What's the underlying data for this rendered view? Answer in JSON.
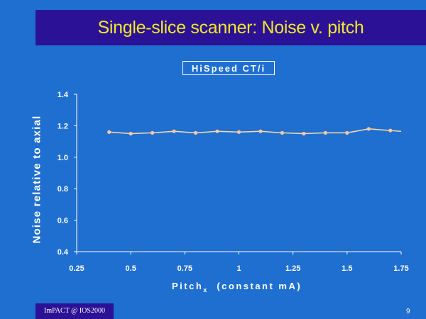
{
  "slide": {
    "title": "Single-slice scanner:  Noise v. pitch",
    "footer": "ImPACT @ IOS2000",
    "page_number": "9"
  },
  "colors": {
    "background": "#1f6fd0",
    "title_bar": "#2b1196",
    "title_text": "#f2e82a",
    "series_line": "#ffd9a8",
    "series_marker": "#ffc6a0",
    "axis": "#ffffff"
  },
  "chart_data": {
    "type": "line",
    "title": "HiSpeed CT/i",
    "xlabel": "Pitch",
    "xlabel_subscript": "x",
    "xlabel_suffix": "(constant mA)",
    "ylabel": "Noise relative to axial",
    "xlim": [
      0.25,
      1.75
    ],
    "ylim": [
      0.4,
      1.4
    ],
    "xticks": [
      0.25,
      0.5,
      0.75,
      1,
      1.25,
      1.5,
      1.75
    ],
    "xtick_labels": [
      "0.25",
      "0.5",
      "0.75",
      "1",
      "1.25",
      "1.5",
      "1.75"
    ],
    "yticks": [
      0.4,
      0.6,
      0.8,
      1.0,
      1.2,
      1.4
    ],
    "ytick_labels": [
      "0.4",
      "0.6",
      "0.8",
      "1.0",
      "1.2",
      "1.4"
    ],
    "grid": false,
    "series": [
      {
        "x": [
          0.4,
          0.5,
          0.6,
          0.7,
          0.8,
          0.9,
          1.0,
          1.1,
          1.2,
          1.3,
          1.4,
          1.5,
          1.6,
          1.7,
          1.75
        ],
        "values": [
          1.16,
          1.15,
          1.155,
          1.165,
          1.155,
          1.165,
          1.16,
          1.165,
          1.155,
          1.15,
          1.155,
          1.155,
          1.18,
          1.17,
          1.165
        ],
        "markers": [
          true,
          true,
          true,
          true,
          true,
          true,
          true,
          true,
          true,
          true,
          true,
          true,
          true,
          true,
          false
        ]
      }
    ]
  }
}
